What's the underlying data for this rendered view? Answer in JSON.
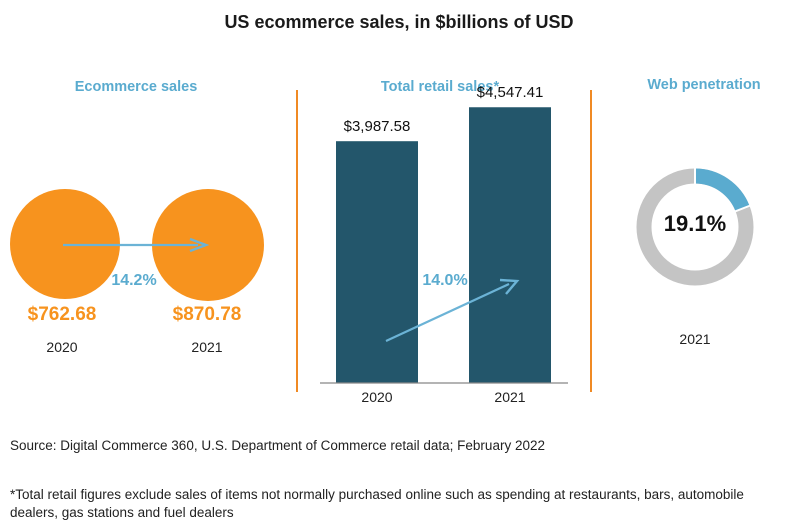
{
  "title": "US ecommerce sales, in $billions of USD",
  "colors": {
    "orange": "#f7931e",
    "teal_text": "#5aabcf",
    "bar": "#23566b",
    "arrow": "#6bb3d6",
    "donut_gray": "#c4c4c4",
    "divider": "#f08a24"
  },
  "panels": {
    "ecommerce": {
      "title": "Ecommerce sales",
      "growth_label": "14.2%"
    },
    "retail": {
      "title": "Total retail sales*",
      "growth_label": "14.0%"
    },
    "web": {
      "title": "Web penetration",
      "center_label": "19.1%",
      "year": "2021"
    }
  },
  "chart_data": [
    {
      "type": "bubble",
      "title": "Ecommerce sales",
      "categories": [
        "2020",
        "2021"
      ],
      "values": [
        762.68,
        870.78
      ],
      "value_labels": [
        "$762.68",
        "$870.78"
      ],
      "annotation": "14.2%"
    },
    {
      "type": "bar",
      "title": "Total retail sales*",
      "categories": [
        "2020",
        "2021"
      ],
      "values": [
        3987.58,
        4547.41
      ],
      "value_labels": [
        "$3,987.58",
        "$4,547.41"
      ],
      "annotation": "14.0%",
      "ylim": [
        0,
        4700
      ]
    },
    {
      "type": "pie",
      "title": "Web penetration",
      "categories": [
        "2021"
      ],
      "values": [
        19.1
      ],
      "value_label": "19.1%"
    }
  ],
  "source": "Source: Digital Commerce 360, U.S. Department of Commerce retail data; February 2022",
  "footnote": "*Total retail figures exclude sales of items not normally purchased online such as spending at restaurants, bars, automobile dealers, gas stations and fuel dealers"
}
